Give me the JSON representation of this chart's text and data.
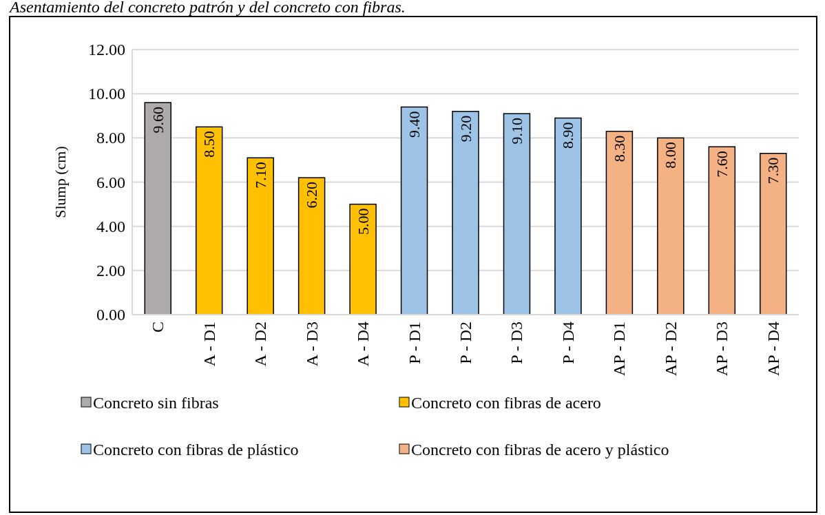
{
  "chart_data": {
    "type": "bar",
    "title": "Asentamiento del concreto patrón y del concreto con fibras.",
    "ylabel": "Slump (cm)",
    "categories": [
      "C",
      "A - D1",
      "A - D2",
      "A - D3",
      "A - D4",
      "P - D1",
      "P - D2",
      "P - D3",
      "P - D4",
      "AP - D1",
      "AP - D2",
      "AP - D3",
      "AP - D4"
    ],
    "series": [
      {
        "name": "Concreto sin fibras",
        "color": "#aeaaaa",
        "values": [
          9.6,
          null,
          null,
          null,
          null,
          null,
          null,
          null,
          null,
          null,
          null,
          null,
          null
        ],
        "value_labels": [
          "9.60",
          null,
          null,
          null,
          null,
          null,
          null,
          null,
          null,
          null,
          null,
          null,
          null
        ]
      },
      {
        "name": "Concreto con fibras de acero",
        "color": "#ffc000",
        "values": [
          null,
          8.5,
          7.1,
          6.2,
          5.0,
          null,
          null,
          null,
          null,
          null,
          null,
          null,
          null
        ],
        "value_labels": [
          null,
          "8.50",
          "7.10",
          "6.20",
          "5.00",
          null,
          null,
          null,
          null,
          null,
          null,
          null,
          null
        ]
      },
      {
        "name": "Concreto con fibras de plástico",
        "color": "#9dc3e6",
        "values": [
          null,
          null,
          null,
          null,
          null,
          9.4,
          9.2,
          9.1,
          8.9,
          null,
          null,
          null,
          null
        ],
        "value_labels": [
          null,
          null,
          null,
          null,
          null,
          "9.40",
          "9.20",
          "9.10",
          "8.90",
          null,
          null,
          null,
          null
        ]
      },
      {
        "name": "Concreto con fibras de acero y plástico",
        "color": "#f4b183",
        "values": [
          null,
          null,
          null,
          null,
          null,
          null,
          null,
          null,
          null,
          8.3,
          8.0,
          7.6,
          7.3
        ],
        "value_labels": [
          null,
          null,
          null,
          null,
          null,
          null,
          null,
          null,
          null,
          "8.30",
          "8.00",
          "7.60",
          "7.30"
        ]
      }
    ],
    "ylim": [
      0,
      12
    ],
    "yticks": [
      {
        "value": 0,
        "label": "0.00"
      },
      {
        "value": 2,
        "label": "2.00"
      },
      {
        "value": 4,
        "label": "4.00"
      },
      {
        "value": 6,
        "label": "6.00"
      },
      {
        "value": 8,
        "label": "8.00"
      },
      {
        "value": 10,
        "label": "10.00"
      },
      {
        "value": 12,
        "label": "12.00"
      }
    ],
    "grid": "y",
    "legend": "bottom"
  }
}
